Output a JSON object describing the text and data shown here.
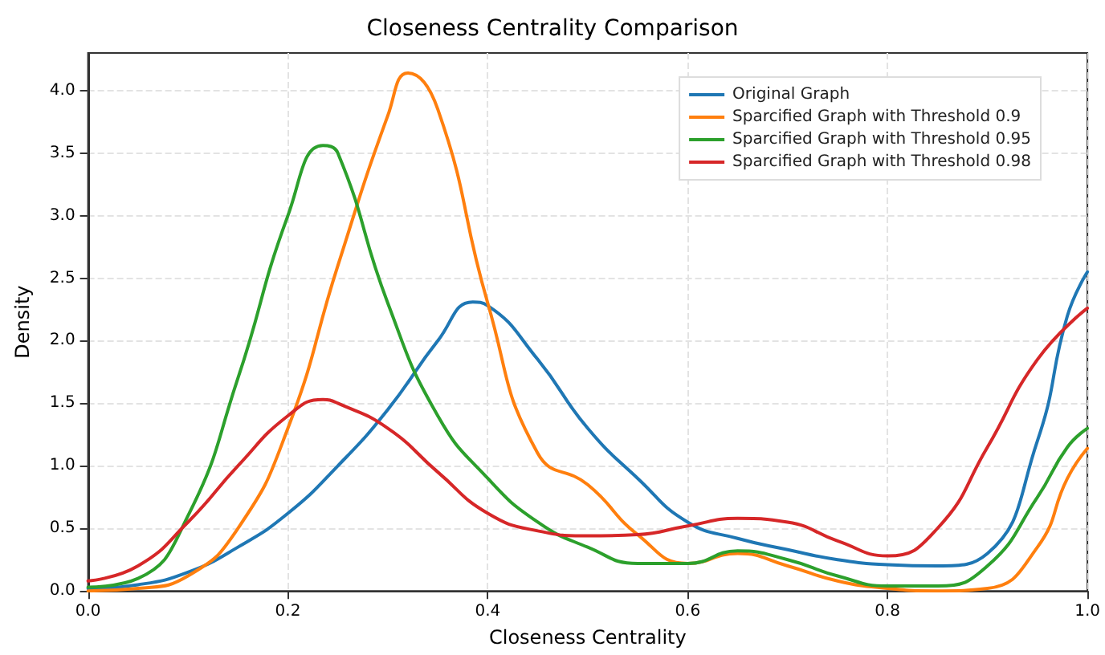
{
  "chart_data": {
    "type": "line",
    "title": "Closeness Centrality Comparison",
    "xlabel": "Closeness Centrality",
    "ylabel": "Density",
    "xlim": [
      0,
      1
    ],
    "xticks": [
      {
        "value": 0,
        "label": "0.0"
      },
      {
        "value": 0.2,
        "label": "0.2"
      },
      {
        "value": 0.4,
        "label": "0.4"
      },
      {
        "value": 0.6,
        "label": "0.6"
      },
      {
        "value": 0.8,
        "label": "0.8"
      },
      {
        "value": 1,
        "label": "1.0"
      }
    ],
    "ylim": [
      0,
      4.3
    ],
    "yticks": [
      {
        "value": 0,
        "label": "0.0"
      },
      {
        "value": 0.5,
        "label": "0.5"
      },
      {
        "value": 1,
        "label": "1.0"
      },
      {
        "value": 1.5,
        "label": "1.5"
      },
      {
        "value": 2,
        "label": "2.0"
      },
      {
        "value": 2.5,
        "label": "2.5"
      },
      {
        "value": 3,
        "label": "3.0"
      },
      {
        "value": 3.5,
        "label": "3.5"
      },
      {
        "value": 4,
        "label": "4.0"
      }
    ],
    "grid": true,
    "legend": "top right",
    "marker": "none",
    "line_style": "solid",
    "series": [
      {
        "name": "Original Graph",
        "color": "#1f77b4",
        "x": [
          0,
          0.05,
          0.1,
          0.15,
          0.2,
          0.25,
          0.3,
          0.35,
          0.385,
          0.4,
          0.45,
          0.5,
          0.55,
          0.6,
          0.65,
          0.7,
          0.75,
          0.8,
          0.85,
          0.9,
          0.95,
          0.98,
          1
        ],
        "values": [
          0.02,
          0.05,
          0.15,
          0.35,
          0.62,
          1.0,
          1.45,
          2.0,
          2.31,
          2.28,
          1.85,
          1.3,
          0.9,
          0.55,
          0.42,
          0.33,
          0.25,
          0.21,
          0.2,
          0.3,
          1.2,
          2.2,
          2.55
        ]
      },
      {
        "name": "Sparcified Graph with Threshold 0.9",
        "color": "#ff7f0e",
        "x": [
          0,
          0.05,
          0.1,
          0.15,
          0.2,
          0.25,
          0.3,
          0.32,
          0.35,
          0.4,
          0.45,
          0.5,
          0.55,
          0.6,
          0.65,
          0.7,
          0.75,
          0.8,
          0.85,
          0.9,
          0.95,
          0.98,
          1
        ],
        "values": [
          0,
          0.02,
          0.12,
          0.5,
          1.3,
          2.6,
          3.8,
          4.14,
          3.85,
          2.3,
          1.1,
          0.85,
          0.45,
          0.22,
          0.3,
          0.2,
          0.08,
          0.02,
          0,
          0.02,
          0.35,
          0.9,
          1.14
        ]
      },
      {
        "name": "Sparcified Graph with Threshold 0.95",
        "color": "#2ca02c",
        "x": [
          0,
          0.05,
          0.1,
          0.15,
          0.2,
          0.235,
          0.25,
          0.3,
          0.35,
          0.4,
          0.45,
          0.5,
          0.55,
          0.6,
          0.65,
          0.7,
          0.75,
          0.8,
          0.85,
          0.9,
          0.95,
          0.98,
          1
        ],
        "values": [
          0.03,
          0.1,
          0.6,
          1.7,
          3.0,
          3.56,
          3.5,
          2.3,
          1.4,
          0.9,
          0.55,
          0.35,
          0.22,
          0.22,
          0.32,
          0.25,
          0.12,
          0.04,
          0.04,
          0.2,
          0.75,
          1.15,
          1.3
        ]
      },
      {
        "name": "Sparcified Graph with Threshold 0.98",
        "color": "#d62728",
        "x": [
          0,
          0.05,
          0.1,
          0.15,
          0.2,
          0.235,
          0.25,
          0.3,
          0.35,
          0.4,
          0.45,
          0.5,
          0.55,
          0.6,
          0.65,
          0.7,
          0.75,
          0.8,
          0.85,
          0.9,
          0.95,
          1
        ],
        "values": [
          0.08,
          0.2,
          0.55,
          1.0,
          1.4,
          1.53,
          1.5,
          1.3,
          0.95,
          0.62,
          0.48,
          0.44,
          0.45,
          0.52,
          0.58,
          0.55,
          0.4,
          0.28,
          0.5,
          1.15,
          1.85,
          2.26
        ]
      }
    ]
  }
}
